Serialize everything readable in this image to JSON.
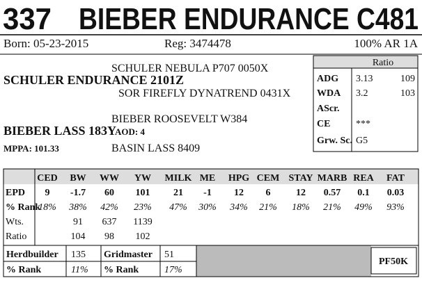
{
  "header": {
    "lot": "337",
    "name": "BIEBER ENDURANCE C481"
  },
  "info": {
    "born": "Born: 05-23-2015",
    "reg": "Reg: 3474478",
    "breed": "100% AR 1A"
  },
  "pedigree": {
    "sire_sire": "SCHULER NEBULA P707 0050X",
    "sire": "SCHULER ENDURANCE 2101Z",
    "sire_dam": "SOR FIREFLY DYNATREND 0431X",
    "dam_sire": "BIEBER ROOSEVELT W384",
    "dam": "BIEBER LASS 183Y",
    "aod": "AOD: 4",
    "mppa": "MPPA: 101.33",
    "dam_dam": "BASIN LASS 8409"
  },
  "ratio_table": {
    "header": "Ratio",
    "rows": [
      [
        "ADG",
        "3.13",
        "109"
      ],
      [
        "WDA",
        "3.2",
        "103"
      ],
      [
        "AScr."
      ],
      [
        "CE",
        "***"
      ],
      [
        "Grw. Sc.",
        "G5"
      ]
    ]
  },
  "epd_table": {
    "columns": [
      "CED",
      "BW",
      "WW",
      "YW",
      "MILK",
      "ME",
      "HPG",
      "CEM",
      "STAY",
      "MARB",
      "REA",
      "FAT"
    ],
    "rows": [
      {
        "label": "EPD",
        "values": [
          "9",
          "-1.7",
          "60",
          "101",
          "21",
          "-1",
          "12",
          "6",
          "12",
          "0.57",
          "0.1",
          "0.03"
        ]
      },
      {
        "label": "% Rank",
        "values": [
          "18%",
          "38%",
          "42%",
          "23%",
          "47%",
          "30%",
          "34%",
          "21%",
          "18%",
          "21%",
          "49%",
          "93%"
        ]
      },
      {
        "label": "Wts.",
        "values": [
          "91",
          "637",
          "1139"
        ]
      },
      {
        "label": "Ratio",
        "values": [
          "104",
          "98",
          "102"
        ]
      }
    ]
  },
  "indexes": [
    {
      "label": "Herdbuilder",
      "value": "135",
      "rank_label": "% Rank",
      "rank": "11%"
    },
    {
      "label": "Gridmaster",
      "value": "51",
      "rank_label": "% Rank",
      "rank": "17%"
    }
  ],
  "genomic": "PF50K"
}
